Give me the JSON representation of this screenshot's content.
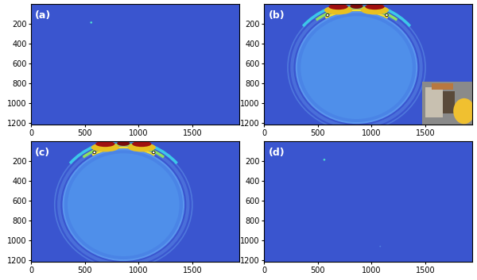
{
  "chart_data": [
    {
      "type": "image",
      "annotation": "(a)",
      "xlim": [
        0,
        1936
      ],
      "ylim": [
        1216,
        0
      ],
      "xticks": [
        0,
        500,
        1000,
        1500
      ],
      "yticks": [
        200,
        400,
        600,
        800,
        1000,
        1200
      ]
    },
    {
      "type": "image",
      "annotation": "(b)",
      "xlim": [
        0,
        1936
      ],
      "ylim": [
        1216,
        0
      ],
      "xticks": [
        0,
        500,
        1000,
        1500
      ],
      "yticks": [
        200,
        400,
        600,
        800,
        1000,
        1200
      ]
    },
    {
      "type": "image",
      "annotation": "(c)",
      "xlim": [
        0,
        1936
      ],
      "ylim": [
        1216,
        0
      ],
      "xticks": [
        0,
        500,
        1000,
        1500
      ],
      "yticks": [
        200,
        400,
        600,
        800,
        1000,
        1200
      ]
    },
    {
      "type": "image",
      "annotation": "(d)",
      "xlim": [
        0,
        1936
      ],
      "ylim": [
        1216,
        0
      ],
      "xticks": [
        0,
        500,
        1000,
        1500
      ],
      "yticks": [
        200,
        400,
        600,
        800,
        1000,
        1200
      ]
    }
  ]
}
